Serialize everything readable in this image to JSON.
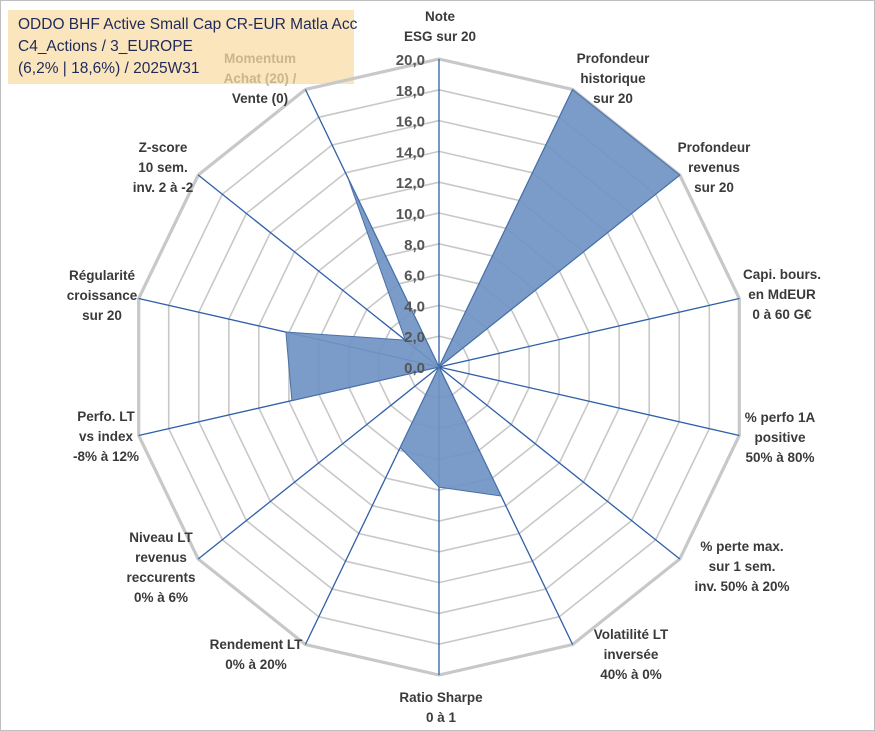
{
  "title_lines": [
    "ODDO BHF Active Small Cap CR-EUR Matla Acc",
    "C4_Actions / 3_EUROPE",
    "(6,2% | 18,6%) / 2025W31"
  ],
  "chart_data": {
    "type": "radar",
    "title": "",
    "rmin": 0,
    "rmax": 20,
    "tick_step": 2,
    "tick_labels": [
      "0,0",
      "2,0",
      "4,0",
      "6,0",
      "8,0",
      "10,0",
      "12,0",
      "14,0",
      "16,0",
      "18,0",
      "20,0"
    ],
    "grid": true,
    "axes": [
      {
        "label_lines": [
          "Note",
          "ESG sur 20"
        ],
        "value": 0
      },
      {
        "label_lines": [
          "Profondeur",
          "historique",
          "sur 20"
        ],
        "value": 20
      },
      {
        "label_lines": [
          "Profondeur",
          "revenus",
          "sur 20"
        ],
        "value": 20
      },
      {
        "label_lines": [
          "Capi. bours.",
          "en MdEUR",
          "0 à 60 G€"
        ],
        "value": 0
      },
      {
        "label_lines": [
          "% perfo 1A",
          "positive",
          "50% à 80%"
        ],
        "value": 0
      },
      {
        "label_lines": [
          "% perte max.",
          "sur 1 sem.",
          "inv. 50% à 20%"
        ],
        "value": 0
      },
      {
        "label_lines": [
          "Volatilité LT",
          "inversée",
          "40% à 0%"
        ],
        "value": 9.3
      },
      {
        "label_lines": [
          "Ratio Sharpe",
          "0 à 1"
        ],
        "value": 7.8
      },
      {
        "label_lines": [
          "Rendement LT",
          "0% à 20%"
        ],
        "value": 5.8
      },
      {
        "label_lines": [
          "Niveau LT",
          "revenus",
          "reccurents",
          "0% à 6%"
        ],
        "value": 0
      },
      {
        "label_lines": [
          "Perfo. LT",
          "vs index",
          "-8% à 12%"
        ],
        "value": 9.8
      },
      {
        "label_lines": [
          "Régularité",
          "croissance",
          "sur 20"
        ],
        "value": 10.2
      },
      {
        "label_lines": [
          "Z-score",
          "10 sem.",
          "inv. 2 à -2"
        ],
        "value": 2.8
      },
      {
        "label_lines": [
          "Momentum",
          "Achat (20) /",
          "Vente (0)"
        ],
        "value": 13.6
      }
    ],
    "colors": {
      "fill": "#7094c3",
      "stroke": "#4a70a8",
      "grid": "#c8c8c8",
      "spoke": "#2f5fa8"
    }
  }
}
